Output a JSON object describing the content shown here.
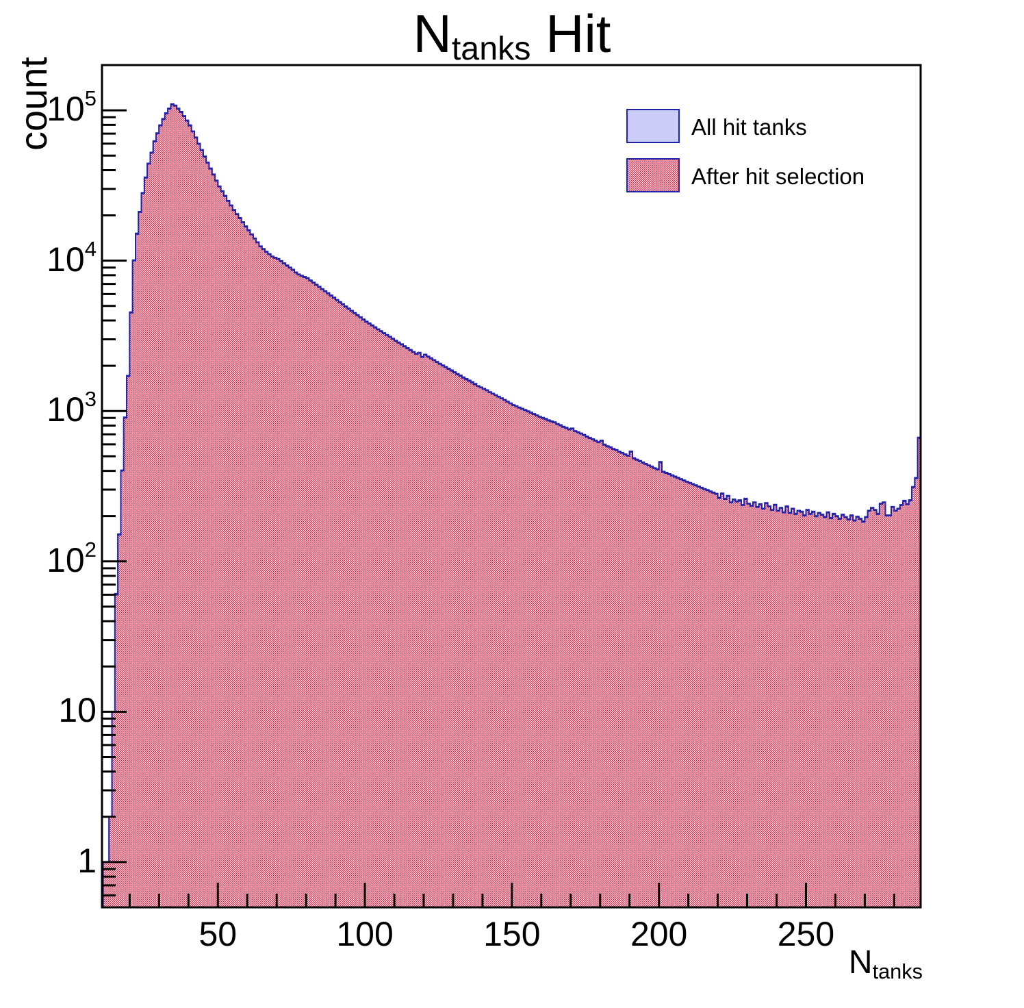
{
  "title": {
    "prefix": "N",
    "subscript": "tanks",
    "suffix": " Hit"
  },
  "axes": {
    "y": {
      "label": "count",
      "scale": "log",
      "min": 0.5,
      "max": 200000,
      "major_ticks": [
        {
          "value": 1,
          "base": "1",
          "exp": ""
        },
        {
          "value": 10,
          "base": "10",
          "exp": ""
        },
        {
          "value": 100,
          "base": "10",
          "exp": "2"
        },
        {
          "value": 1000,
          "base": "10",
          "exp": "3"
        },
        {
          "value": 10000,
          "base": "10",
          "exp": "4"
        },
        {
          "value": 100000,
          "base": "10",
          "exp": "5"
        }
      ]
    },
    "x": {
      "label_prefix": "N",
      "label_subscript": "tanks",
      "min": 10.6,
      "max": 289,
      "major_ticks": [
        50,
        100,
        150,
        200,
        250
      ],
      "minor_tick_step": 10
    }
  },
  "legend": {
    "items": [
      {
        "label": "All hit tanks",
        "swatch": "solid"
      },
      {
        "label": "After hit selection",
        "swatch": "checker"
      }
    ]
  },
  "colors": {
    "hist_border": "#2222aa",
    "all_fill": "#ccccf8",
    "checker_red": "#e0284a",
    "checker_light": "#f9eef0",
    "frame": "#000000"
  },
  "chart_data": {
    "type": "bar",
    "title": "N_tanks Hit",
    "xlabel": "N_tanks",
    "ylabel": "count",
    "xscale": "linear",
    "yscale": "log",
    "xlim": [
      10.6,
      289
    ],
    "ylim": [
      0.5,
      200000
    ],
    "grid": false,
    "legend_position": "top-right",
    "bin_start": 11,
    "bin_width": 1,
    "series": [
      {
        "name": "All hit tanks",
        "values": [
          1,
          1,
          2,
          10,
          61,
          152,
          404,
          909,
          1720,
          4550,
          10100,
          15200,
          21200,
          28300,
          35900,
          44400,
          52500,
          62600,
          70700,
          79800,
          87900,
          96000,
          103000,
          110100,
          108100,
          103000,
          98000,
          91900,
          85900,
          79800,
          72700,
          66200,
          60200,
          54700,
          49500,
          45100,
          41200,
          37600,
          34200,
          31300,
          29100,
          27100,
          25100,
          23400,
          21800,
          20500,
          19300,
          18100,
          17000,
          16000,
          15000,
          14100,
          13300,
          12500,
          12000,
          11500,
          11100,
          10700,
          10500,
          10300,
          9970,
          9650,
          9330,
          9030,
          8740,
          8380,
          8130,
          7980,
          7830,
          7680,
          7420,
          7180,
          6950,
          6730,
          6500,
          6290,
          6090,
          5890,
          5700,
          5500,
          5320,
          5150,
          4980,
          4820,
          4660,
          4500,
          4360,
          4220,
          4080,
          3950,
          3840,
          3730,
          3620,
          3510,
          3410,
          3310,
          3220,
          3130,
          3040,
          2950,
          2870,
          2790,
          2710,
          2630,
          2560,
          2480,
          2410,
          2450,
          2300,
          2380,
          2310,
          2250,
          2190,
          2130,
          2070,
          2020,
          1970,
          1920,
          1870,
          1820,
          1770,
          1730,
          1680,
          1640,
          1600,
          1560,
          1520,
          1470,
          1440,
          1410,
          1380,
          1340,
          1310,
          1280,
          1250,
          1220,
          1190,
          1160,
          1130,
          1100,
          1080,
          1060,
          1040,
          1020,
          1000,
          980,
          960,
          939,
          919,
          904,
          889,
          871,
          856,
          846,
          823,
          808,
          790,
          776,
          760,
          768,
          739,
          725,
          712,
          697,
          679,
          665,
          651,
          638,
          624,
          638,
          601,
          586,
          576,
          562,
          553,
          539,
          529,
          517,
          507,
          540,
          487,
          477,
          467,
          457,
          447,
          437,
          429,
          419,
          411,
          460,
          396,
          390,
          382,
          375,
          368,
          361,
          354,
          347,
          340,
          334,
          328,
          322,
          316,
          310,
          304,
          299,
          293,
          288,
          283,
          266,
          284,
          262,
          274,
          248,
          259,
          251,
          256,
          238,
          262,
          243,
          235,
          248,
          231,
          241,
          225,
          245,
          233,
          221,
          239,
          218,
          228,
          213,
          233,
          211,
          225,
          208,
          218,
          215,
          203,
          221,
          208,
          215,
          201,
          211,
          205,
          198,
          213,
          195,
          208,
          201,
          193,
          205,
          198,
          191,
          203,
          188,
          199,
          193,
          185,
          198,
          218,
          228,
          221,
          208,
          243,
          248,
          203,
          203,
          231,
          218,
          225,
          238,
          254,
          241,
          256,
          314,
          360,
          667
        ]
      },
      {
        "name": "After hit selection",
        "values": [
          1,
          1,
          2,
          10,
          60,
          150,
          400,
          900,
          1700,
          4500,
          10000,
          15000,
          21000,
          28000,
          35500,
          44000,
          52000,
          62000,
          70000,
          79000,
          87000,
          95000,
          102000,
          109000,
          107000,
          102000,
          97000,
          91000,
          85000,
          79000,
          72000,
          65500,
          59600,
          54200,
          49000,
          44700,
          40800,
          37200,
          33900,
          31000,
          28800,
          26800,
          24900,
          23200,
          21600,
          20300,
          19100,
          17900,
          16800,
          15800,
          14900,
          14000,
          13200,
          12400,
          11900,
          11400,
          11000,
          10600,
          10400,
          10200,
          9870,
          9550,
          9240,
          8940,
          8650,
          8300,
          8050,
          7900,
          7750,
          7600,
          7350,
          7110,
          6880,
          6660,
          6440,
          6230,
          6030,
          5830,
          5640,
          5450,
          5270,
          5100,
          4930,
          4770,
          4610,
          4460,
          4320,
          4180,
          4040,
          3910,
          3800,
          3690,
          3580,
          3480,
          3380,
          3280,
          3190,
          3100,
          3010,
          2920,
          2840,
          2760,
          2680,
          2600,
          2530,
          2460,
          2390,
          2430,
          2280,
          2360,
          2290,
          2230,
          2170,
          2110,
          2050,
          2000,
          1950,
          1900,
          1850,
          1800,
          1750,
          1710,
          1660,
          1620,
          1580,
          1540,
          1500,
          1460,
          1430,
          1400,
          1370,
          1330,
          1300,
          1270,
          1240,
          1210,
          1180,
          1150,
          1120,
          1090,
          1070,
          1050,
          1030,
          1010,
          990,
          970,
          950,
          930,
          910,
          895,
          880,
          862,
          848,
          838,
          815,
          800,
          782,
          768,
          752,
          760,
          732,
          718,
          705,
          690,
          672,
          658,
          645,
          632,
          618,
          632,
          595,
          580,
          570,
          556,
          548,
          534,
          524,
          512,
          502,
          535,
          482,
          472,
          462,
          452,
          443,
          433,
          425,
          415,
          407,
          455,
          392,
          386,
          378,
          371,
          364,
          357,
          350,
          344,
          337,
          331,
          325,
          319,
          313,
          307,
          301,
          296,
          290,
          285,
          280,
          263,
          281,
          259,
          271,
          246,
          256,
          249,
          253,
          236,
          259,
          241,
          233,
          246,
          229,
          239,
          223,
          243,
          231,
          219,
          237,
          216,
          226,
          211,
          231,
          209,
          223,
          206,
          216,
          213,
          201,
          219,
          206,
          213,
          199,
          209,
          203,
          196,
          211,
          193,
          206,
          199,
          191,
          203,
          196,
          189,
          201,
          186,
          197,
          191,
          183,
          196,
          216,
          226,
          219,
          206,
          241,
          246,
          201,
          201,
          229,
          216,
          223,
          236,
          251,
          239,
          253,
          311,
          356,
          660
        ]
      }
    ]
  }
}
